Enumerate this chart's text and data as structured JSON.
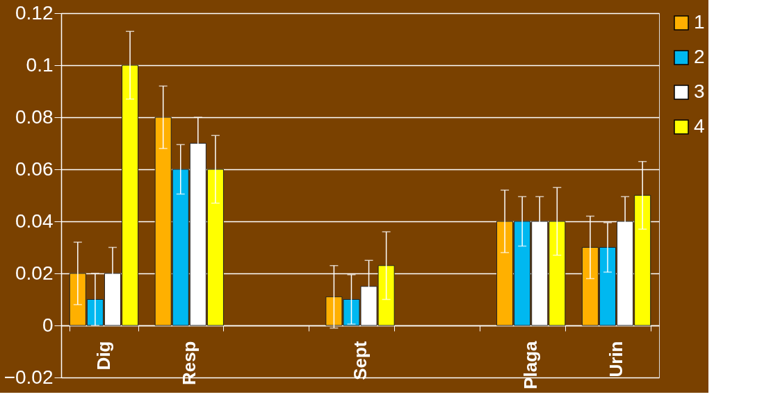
{
  "chart_data": {
    "type": "bar",
    "categories": [
      "Dig",
      "Resp",
      null,
      "Sept",
      null,
      "Plaga",
      "Urin"
    ],
    "series": [
      {
        "name": "1",
        "color": "#ffb000",
        "values": [
          0.02,
          0.08,
          null,
          0.011,
          null,
          0.04,
          0.03
        ],
        "errors": [
          0.012,
          0.012,
          null,
          0.012,
          null,
          0.012,
          0.012
        ]
      },
      {
        "name": "2",
        "color": "#00b8f0",
        "values": [
          0.01,
          0.06,
          null,
          0.01,
          null,
          0.04,
          0.03
        ],
        "errors": [
          0.01,
          0.0095,
          null,
          0.0095,
          null,
          0.0095,
          0.0095
        ]
      },
      {
        "name": "3",
        "color": "#ffffff",
        "values": [
          0.02,
          0.07,
          null,
          0.015,
          null,
          0.04,
          0.04
        ],
        "errors": [
          0.01,
          0.01,
          null,
          0.01,
          null,
          0.0095,
          0.0095
        ]
      },
      {
        "name": "4",
        "color": "#ffff00",
        "values": [
          0.1,
          0.06,
          null,
          0.023,
          null,
          0.04,
          0.05
        ],
        "errors": [
          0.013,
          0.013,
          null,
          0.013,
          null,
          0.013,
          0.013
        ]
      }
    ],
    "ylim": [
      -0.02,
      0.12
    ],
    "yticks": [
      -0.02,
      0,
      0.02,
      0.04,
      0.06,
      0.08,
      0.1,
      0.12
    ],
    "grid": "y",
    "legend": "right"
  }
}
